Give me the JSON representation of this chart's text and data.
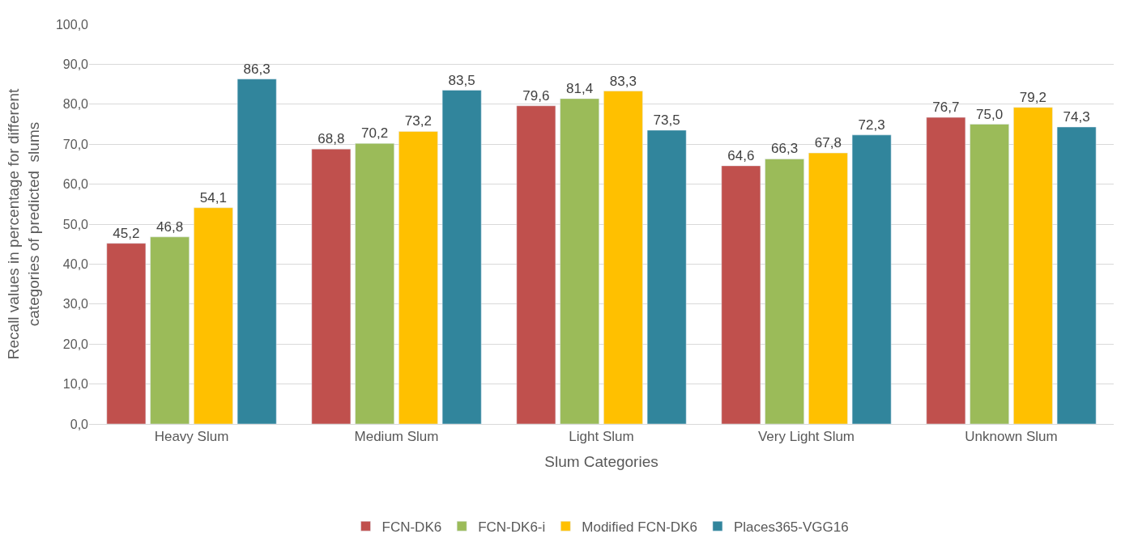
{
  "chart_data": {
    "type": "bar",
    "xlabel": "Slum Categories",
    "ylabel": "Recall values in percentage for different\ncategories of predicted  slums",
    "categories": [
      "Heavy Slum",
      "Medium Slum",
      "Light Slum",
      "Very Light Slum",
      "Unknown Slum"
    ],
    "series": [
      {
        "name": "FCN-DK6",
        "color": "#c0504d",
        "values": [
          45.2,
          68.8,
          79.6,
          64.6,
          76.7
        ],
        "value_labels": [
          "45,2",
          "68,8",
          "79,6",
          "64,6",
          "76,7"
        ]
      },
      {
        "name": "FCN-DK6-i",
        "color": "#9bbb59",
        "values": [
          46.8,
          70.2,
          81.4,
          66.3,
          75.0
        ],
        "value_labels": [
          "46,8",
          "70,2",
          "81,4",
          "66,3",
          "75,0"
        ]
      },
      {
        "name": "Modified FCN-DK6",
        "color": "#ffc000",
        "values": [
          54.1,
          73.2,
          83.3,
          67.8,
          79.2
        ],
        "value_labels": [
          "54,1",
          "73,2",
          "83,3",
          "67,8",
          "79,2"
        ]
      },
      {
        "name": "Places365-VGG16",
        "color": "#31859c",
        "values": [
          86.3,
          83.5,
          73.5,
          72.3,
          74.3
        ],
        "value_labels": [
          "86,3",
          "83,5",
          "73,5",
          "72,3",
          "74,3"
        ]
      }
    ],
    "ylim": [
      0,
      100
    ],
    "yticks": [
      {
        "value": 0,
        "label": "0,0"
      },
      {
        "value": 10,
        "label": "10,0"
      },
      {
        "value": 20,
        "label": "20,0"
      },
      {
        "value": 30,
        "label": "30,0"
      },
      {
        "value": 40,
        "label": "40,0"
      },
      {
        "value": 50,
        "label": "50,0"
      },
      {
        "value": 60,
        "label": "60,0"
      },
      {
        "value": 70,
        "label": "70,0"
      },
      {
        "value": 80,
        "label": "80,0"
      },
      {
        "value": 90,
        "label": "90,0"
      },
      {
        "value": 100,
        "label": "100,0"
      }
    ],
    "grid": "y",
    "legend": "bottom"
  }
}
